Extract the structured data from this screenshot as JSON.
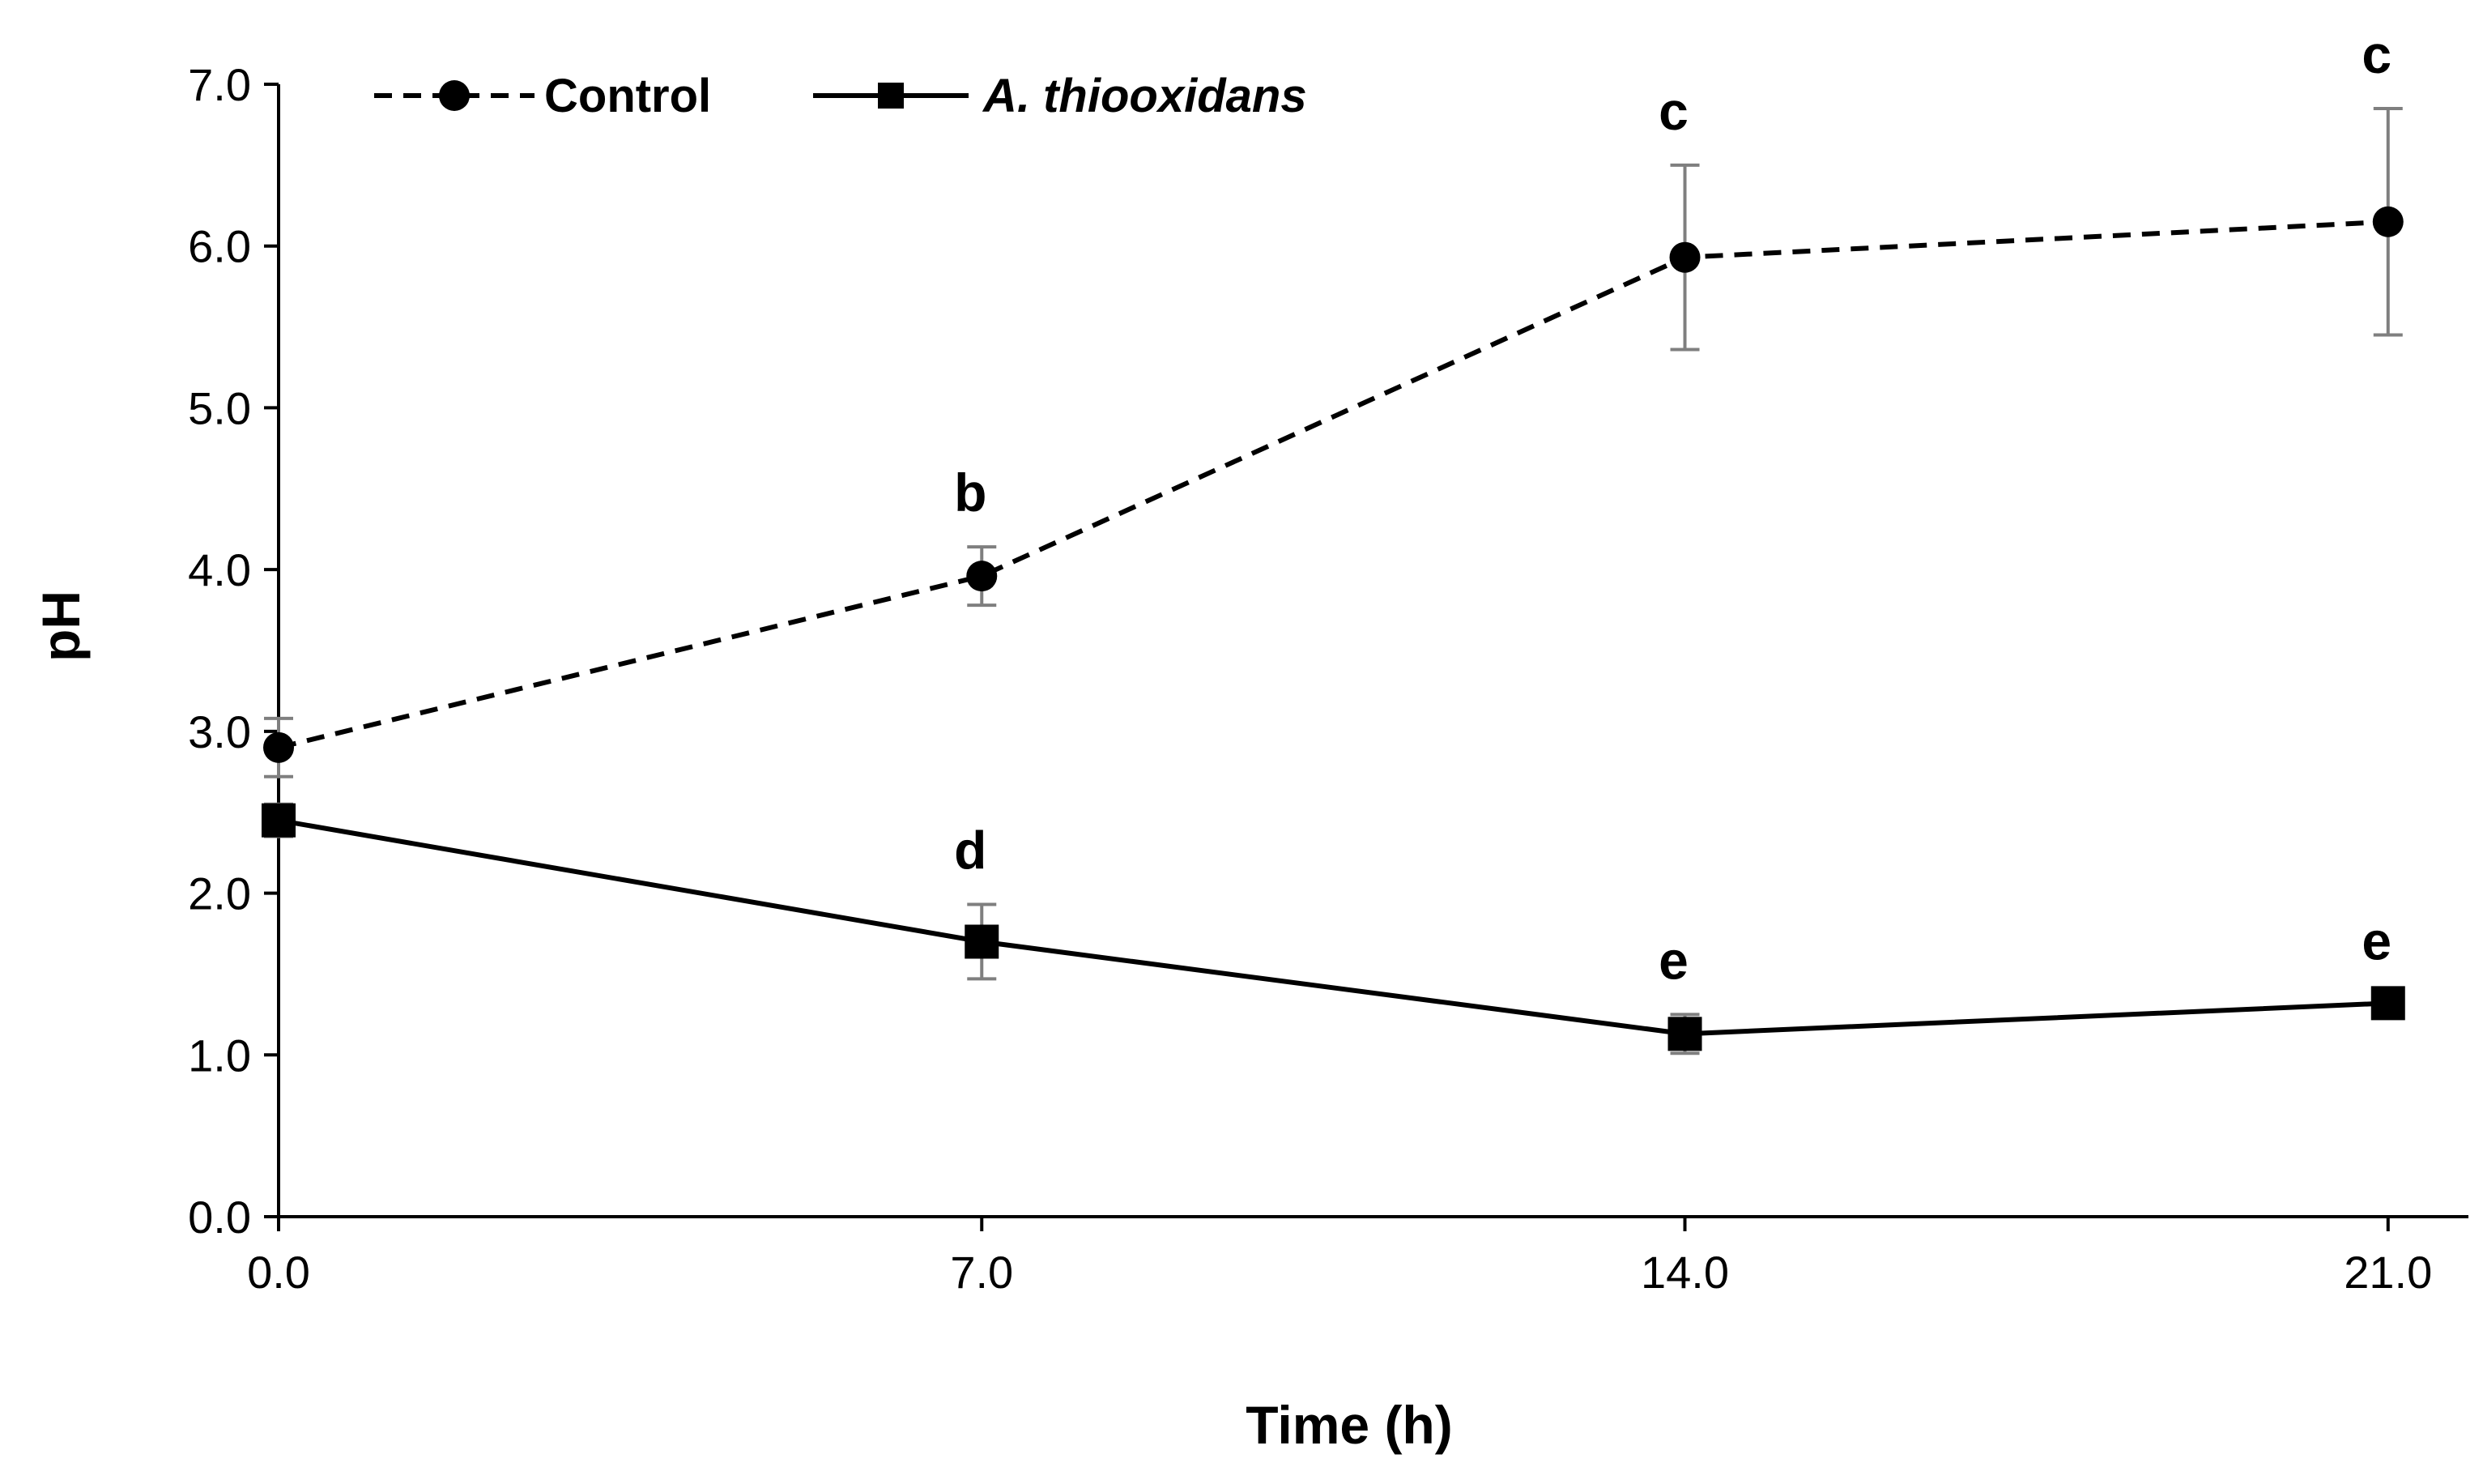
{
  "chart_data": {
    "type": "line",
    "title": "",
    "xlabel": "Time (h)",
    "ylabel": "pH",
    "x": [
      0.0,
      7.0,
      14.0,
      21.0
    ],
    "x_tick_labels": [
      "0.0",
      "7.0",
      "14.0",
      "21.0"
    ],
    "xlim": [
      0,
      21.8
    ],
    "ylim": [
      0,
      7
    ],
    "y_ticks": [
      0,
      1,
      2,
      3,
      4,
      5,
      6,
      7
    ],
    "y_tick_labels": [
      "0.0",
      "1.0",
      "2.0",
      "3.0",
      "4.0",
      "5.0",
      "6.0",
      "7.0"
    ],
    "grid": false,
    "legend_position": "top-left",
    "series": [
      {
        "name": "Control",
        "italic": false,
        "values": [
          2.9,
          3.96,
          5.93,
          6.15
        ],
        "errors": [
          0.18,
          0.18,
          0.57,
          0.7
        ],
        "marker": "circle",
        "line_style": "dashed",
        "color": "#000000",
        "error_color": "#7f7f7f",
        "annotations": [
          "",
          "b",
          "c",
          "c"
        ]
      },
      {
        "name": "A. thiooxidans",
        "italic": true,
        "values": [
          2.45,
          1.7,
          1.13,
          1.32
        ],
        "errors": [
          0.1,
          0.23,
          0.12,
          0.05
        ],
        "marker": "square",
        "line_style": "solid",
        "color": "#000000",
        "error_color": "#7f7f7f",
        "annotations": [
          "",
          "d",
          "e",
          "e"
        ]
      }
    ]
  }
}
